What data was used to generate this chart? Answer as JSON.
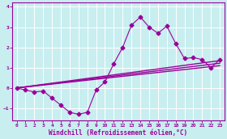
{
  "x": [
    0,
    1,
    2,
    3,
    4,
    5,
    6,
    7,
    8,
    9,
    10,
    11,
    12,
    13,
    14,
    15,
    16,
    17,
    18,
    19,
    20,
    21,
    22,
    23
  ],
  "y_main": [
    0.0,
    -0.1,
    -0.2,
    -0.15,
    -0.5,
    -0.85,
    -1.2,
    -1.3,
    -1.2,
    -0.1,
    0.3,
    1.2,
    2.0,
    3.1,
    3.5,
    3.0,
    2.7,
    3.05,
    2.2,
    1.45,
    1.5,
    1.4,
    1.0,
    1.4
  ],
  "line_color": "#990099",
  "bg_color": "#c8eef0",
  "grid_color": "#ffffff",
  "xlabel": "Windchill (Refroidissement éolien,°C)",
  "xlim": [
    -0.5,
    23.5
  ],
  "ylim": [
    -1.6,
    4.2
  ],
  "yticks": [
    -1,
    0,
    1,
    2,
    3,
    4
  ],
  "xticks": [
    0,
    1,
    2,
    3,
    4,
    5,
    6,
    7,
    8,
    9,
    10,
    11,
    12,
    13,
    14,
    15,
    16,
    17,
    18,
    19,
    20,
    21,
    22,
    23
  ],
  "marker": "D",
  "markersize": 2.5,
  "linewidth": 0.8,
  "straight_linewidth": 1.0,
  "line1_start": 0.0,
  "line1_end": 1.35,
  "line2_start": 0.0,
  "line2_end": 1.1,
  "line3_start": 0.0,
  "line3_end": 1.22
}
